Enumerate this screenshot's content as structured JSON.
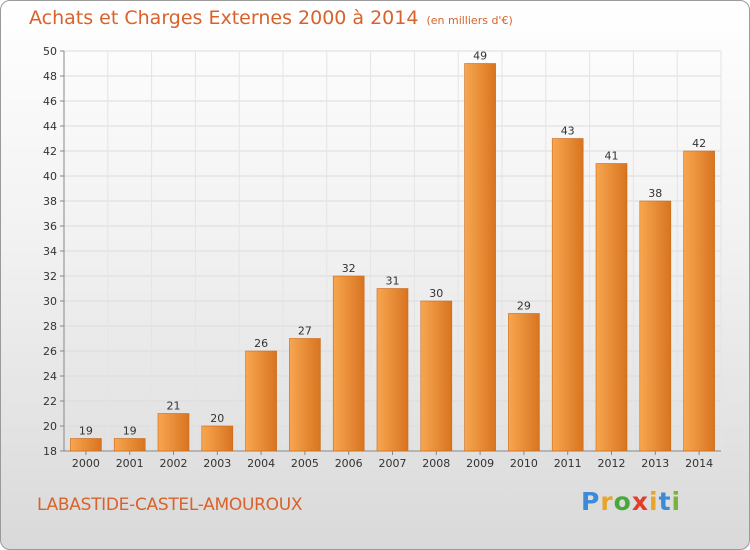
{
  "header": {
    "title": "Achats et Charges Externes 2000 à 2014",
    "unit": "(en milliers d'€)"
  },
  "footer": {
    "place": "LABASTIDE-CASTEL-AMOUROUX",
    "logo_letters": [
      "P",
      "r",
      "o",
      "x",
      "i",
      "t",
      "i"
    ],
    "logo_colors": [
      "#3c8ad8",
      "#e8a52a",
      "#4aa83a",
      "#e23c2a",
      "#e8a52a",
      "#3c8ad8",
      "#7bb33a"
    ]
  },
  "chart_data": {
    "type": "bar",
    "categories": [
      "2000",
      "2001",
      "2002",
      "2003",
      "2004",
      "2005",
      "2006",
      "2007",
      "2008",
      "2009",
      "2010",
      "2011",
      "2012",
      "2013",
      "2014"
    ],
    "values": [
      19,
      19,
      21,
      20,
      26,
      27,
      32,
      31,
      30,
      49,
      29,
      43,
      41,
      38,
      42
    ],
    "yticks": [
      18,
      20,
      22,
      24,
      26,
      28,
      30,
      32,
      34,
      36,
      38,
      40,
      42,
      44,
      46,
      48,
      50
    ],
    "ylim": [
      18,
      50
    ],
    "grid": true,
    "bar_color_light": "#f8a650",
    "bar_color_dark": "#d87420",
    "text_color": "#333333"
  }
}
